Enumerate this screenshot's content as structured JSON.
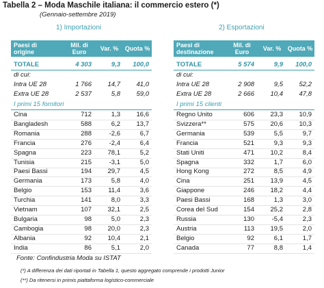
{
  "title": "Tabella 2 – Moda Maschile italiana: il commercio estero (*)",
  "subtitle": "(Gennaio-settembre 2019)",
  "panels": [
    {
      "heading": "1) Importazioni",
      "columns": [
        "Paesi di origine",
        "Mil. di Euro",
        "Var. %",
        "Quota %"
      ],
      "total": [
        "TOTALE",
        "4 303",
        "9,3",
        "100,0"
      ],
      "subheading": "di cui:",
      "aggregates": [
        [
          "Intra UE 28",
          "1 766",
          "14,7",
          "41,0"
        ],
        [
          "Extra UE 28",
          "2 537",
          "5,8",
          "59,0"
        ]
      ],
      "group_label": "I primi 15 fornitori",
      "rows": [
        [
          "Cina",
          "712",
          "1,3",
          "16,6"
        ],
        [
          "Bangladesh",
          "588",
          "6,2",
          "13,7"
        ],
        [
          "Romania",
          "288",
          "-2,6",
          "6,7"
        ],
        [
          "Francia",
          "276",
          "-2,4",
          "6,4"
        ],
        [
          "Spagna",
          "223",
          "78,1",
          "5,2"
        ],
        [
          "Tunisia",
          "215",
          "-3,1",
          "5,0"
        ],
        [
          "Paesi Bassi",
          "194",
          "29,7",
          "4,5"
        ],
        [
          "Germania",
          "173",
          "5,8",
          "4,0"
        ],
        [
          "Belgio",
          "153",
          "11,4",
          "3,6"
        ],
        [
          "Turchia",
          "141",
          "8,0",
          "3,3"
        ],
        [
          "Vietnam",
          "107",
          "32,1",
          "2,5"
        ],
        [
          "Bulgaria",
          "98",
          "5,0",
          "2,3"
        ],
        [
          "Cambogia",
          "98",
          "20,0",
          "2,3"
        ],
        [
          "Albania",
          "92",
          "10,4",
          "2,1"
        ],
        [
          "India",
          "86",
          "5,1",
          "2,0"
        ]
      ]
    },
    {
      "heading": "2) Esportazioni",
      "columns": [
        "Paesi di destinazione",
        "Mil. di Euro",
        "Var. %",
        "Quota %"
      ],
      "total": [
        "TOTALE",
        "5 574",
        "9,9",
        "100,0"
      ],
      "subheading": "di cui:",
      "aggregates": [
        [
          "Intra UE 28",
          "2 908",
          "9,5",
          "52,2"
        ],
        [
          "Extra UE 28",
          "2 666",
          "10,4",
          "47,8"
        ]
      ],
      "group_label": "I primi 15 clienti",
      "rows": [
        [
          "Regno Unito",
          "606",
          "23,3",
          "10,9"
        ],
        [
          "Svizzera**",
          "575",
          "20,6",
          "10,3"
        ],
        [
          "Germania",
          "539",
          "5,5",
          "9,7"
        ],
        [
          "Francia",
          "521",
          "9,3",
          "9,3"
        ],
        [
          "Stati Uniti",
          "471",
          "10,2",
          "8,4"
        ],
        [
          "Spagna",
          "332",
          "1,7",
          "6,0"
        ],
        [
          "Hong Kong",
          "272",
          "8,5",
          "4,9"
        ],
        [
          "Cina",
          "251",
          "13,9",
          "4,5"
        ],
        [
          "Giappone",
          "246",
          "18,2",
          "4,4"
        ],
        [
          "Paesi Bassi",
          "168",
          "1,3",
          "3,0"
        ],
        [
          "Corea del Sud",
          "154",
          "25,2",
          "2,8"
        ],
        [
          "Russia",
          "130",
          "-5,4",
          "2,3"
        ],
        [
          "Austria",
          "113",
          "19,5",
          "2,0"
        ],
        [
          "Belgio",
          "92",
          "6,1",
          "1,7"
        ],
        [
          "Canada",
          "77",
          "8,8",
          "1,4"
        ]
      ]
    }
  ],
  "source": "Fonte:  Confindustria Moda su ISTAT",
  "notes": [
    "(*) A differenza dei dati riportati in Tabella 1, questo aggregato comprende i prodotti Junior",
    "(**) Da ritenersi in primis piattaforma logistico-commerciale"
  ]
}
